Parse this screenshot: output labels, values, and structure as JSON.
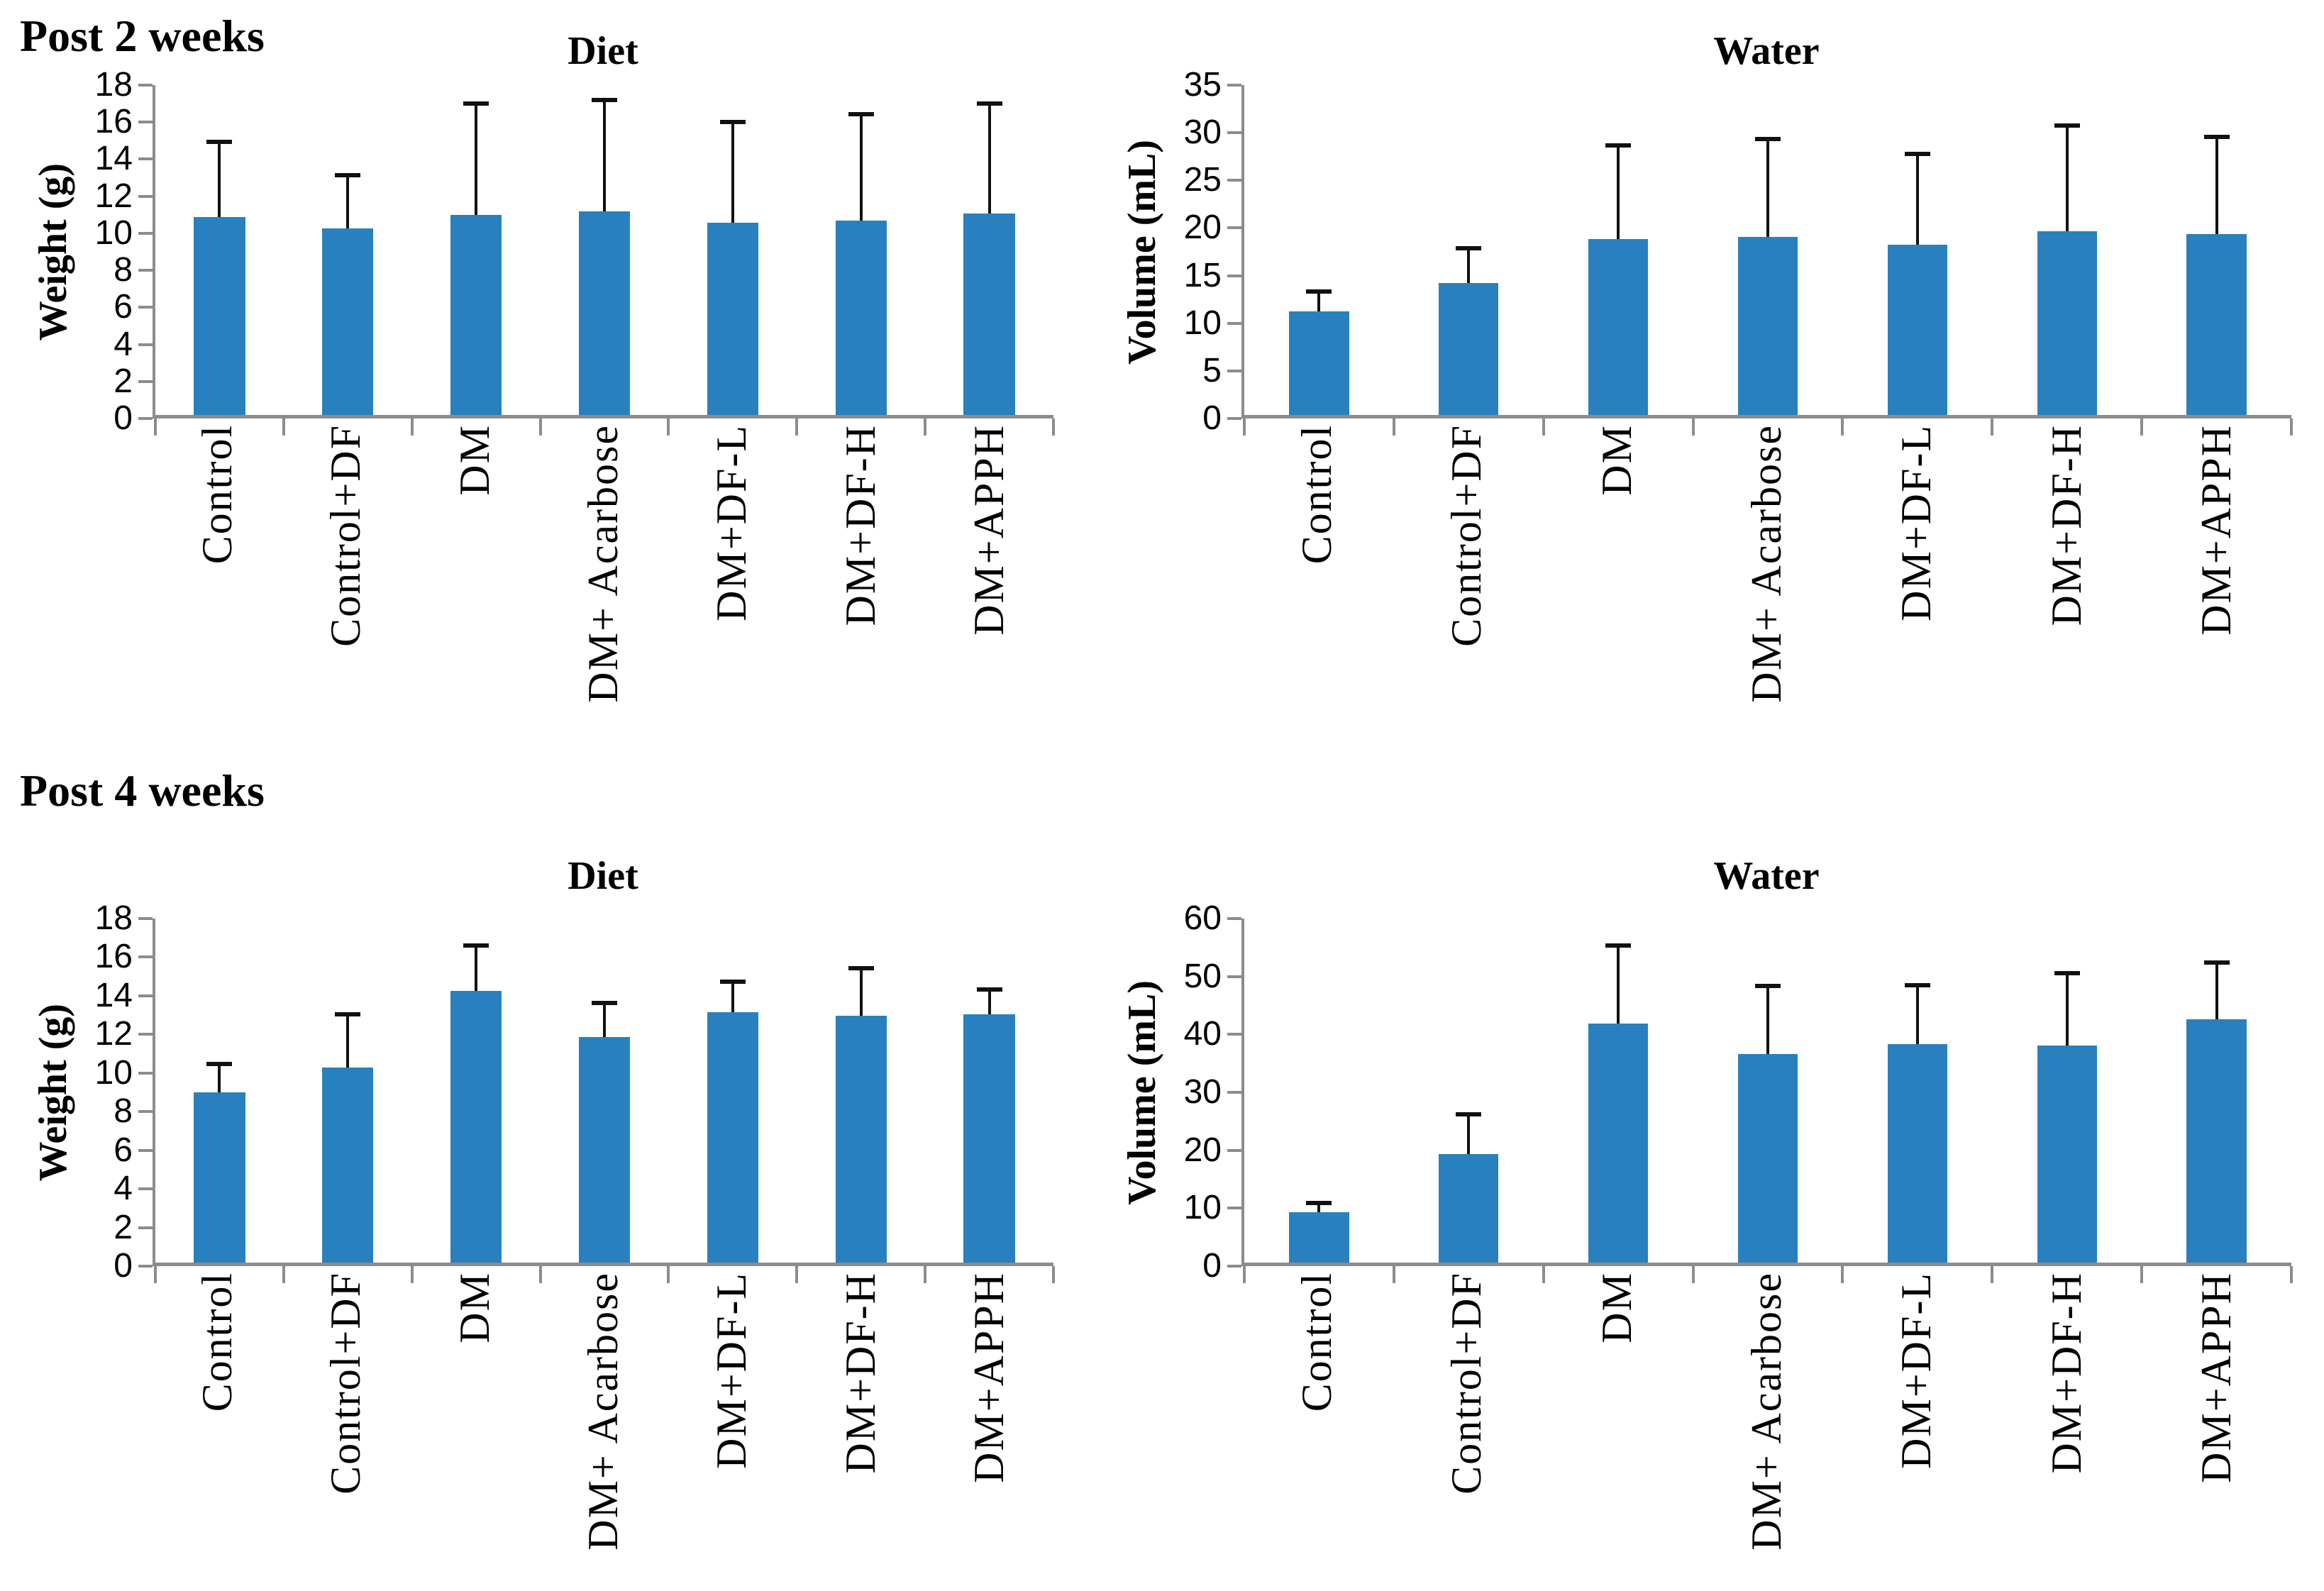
{
  "sections": {
    "post2": "Post 2 weeks",
    "post4": "Post 4 weeks"
  },
  "colors": {
    "bar": "#2980BE",
    "axis": "#8C8C8C",
    "error": "#111111"
  },
  "chart_data": [
    {
      "type": "bar",
      "section": "Post 2 weeks",
      "title": "Diet",
      "ylabel": "Weight (g)",
      "xlabel": "",
      "ylim": [
        0,
        18
      ],
      "ytick_step": 2,
      "grid": false,
      "legend": "none",
      "categories": [
        "Control",
        "Control+DF",
        "DM",
        "DM+ Acarbose",
        "DM+DF-L",
        "DM+DF-H",
        "DM+APPH"
      ],
      "values": [
        10.8,
        10.2,
        10.9,
        11.1,
        10.5,
        10.6,
        11.0
      ],
      "error_top": [
        14.9,
        13.1,
        17.0,
        17.2,
        16.0,
        16.4,
        17.0
      ]
    },
    {
      "type": "bar",
      "section": "Post 2 weeks",
      "title": "Water",
      "ylabel": "Volume (mL)",
      "xlabel": "",
      "ylim": [
        0,
        35
      ],
      "ytick_step": 5,
      "grid": false,
      "legend": "none",
      "categories": [
        "Control",
        "Control+DF",
        "DM",
        "DM+ Acarbose",
        "DM+DF-L",
        "DM+DF-H",
        "DM+APPH"
      ],
      "values": [
        11.0,
        14.0,
        18.7,
        18.9,
        18.1,
        19.5,
        19.2
      ],
      "error_top": [
        13.1,
        17.7,
        28.6,
        29.3,
        27.7,
        30.7,
        29.5
      ]
    },
    {
      "type": "bar",
      "section": "Post 4 weeks",
      "title": "Diet",
      "ylabel": "Weight (g)",
      "xlabel": "",
      "ylim": [
        0,
        18
      ],
      "ytick_step": 2,
      "grid": false,
      "legend": "none",
      "categories": [
        "Control",
        "Control+DF",
        "DM",
        "DM+ Acarbose",
        "DM+DF-L",
        "DM+DF-H",
        "DM+APPH"
      ],
      "values": [
        8.9,
        10.2,
        14.2,
        11.8,
        13.1,
        12.9,
        13.0
      ],
      "error_top": [
        10.4,
        13.0,
        16.6,
        13.6,
        14.7,
        15.4,
        14.3
      ]
    },
    {
      "type": "bar",
      "section": "Post 4 weeks",
      "title": "Water",
      "ylabel": "Volume (mL)",
      "xlabel": "",
      "ylim": [
        0,
        60
      ],
      "ytick_step": 10,
      "grid": false,
      "legend": "none",
      "categories": [
        "Control",
        "Control+DF",
        "DM",
        "DM+ Acarbose",
        "DM+DF-L",
        "DM+DF-H",
        "DM+APPH"
      ],
      "values": [
        8.8,
        18.9,
        41.7,
        36.4,
        38.1,
        37.8,
        42.4
      ],
      "error_top": [
        10.4,
        25.8,
        55.3,
        48.3,
        48.4,
        50.5,
        52.3
      ]
    }
  ]
}
